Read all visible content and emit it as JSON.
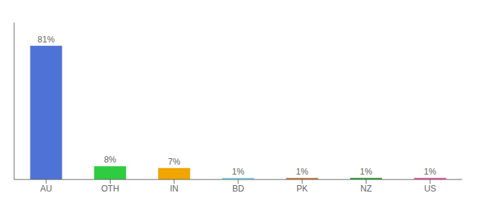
{
  "chart_data": {
    "type": "bar",
    "categories": [
      "AU",
      "OTH",
      "IN",
      "BD",
      "PK",
      "NZ",
      "US"
    ],
    "values": [
      81,
      8,
      7,
      1,
      1,
      1,
      1
    ],
    "value_labels": [
      "81%",
      "8%",
      "7%",
      "1%",
      "1%",
      "1%",
      "1%"
    ],
    "colors": [
      "#4f72d6",
      "#2ecc40",
      "#f0a500",
      "#7ecff0",
      "#c87941",
      "#27a030",
      "#e8509a"
    ],
    "data_labels": true,
    "ylim": [
      0,
      95
    ],
    "tick_labels": "x",
    "grid": false
  }
}
